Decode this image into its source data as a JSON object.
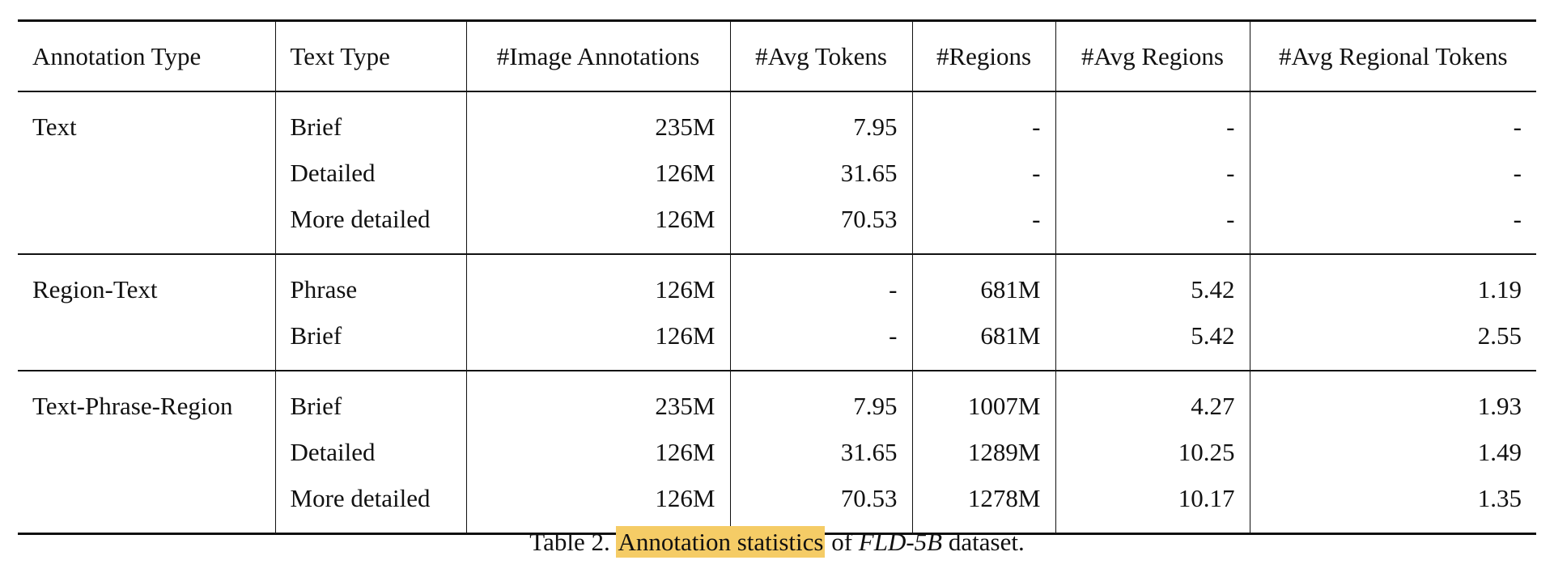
{
  "table": {
    "headers": [
      "Annotation Type",
      "Text Type",
      "#Image Annotations",
      "#Avg Tokens",
      "#Regions",
      "#Avg Regions",
      "#Avg Regional Tokens"
    ],
    "groups": [
      {
        "annotation_type": "Text",
        "rows": [
          {
            "text_type": "Brief",
            "image_annotations": "235M",
            "avg_tokens": "7.95",
            "regions": "-",
            "avg_regions": "-",
            "avg_regional_tokens": "-"
          },
          {
            "text_type": "Detailed",
            "image_annotations": "126M",
            "avg_tokens": "31.65",
            "regions": "-",
            "avg_regions": "-",
            "avg_regional_tokens": "-"
          },
          {
            "text_type": "More detailed",
            "image_annotations": "126M",
            "avg_tokens": "70.53",
            "regions": "-",
            "avg_regions": "-",
            "avg_regional_tokens": "-"
          }
        ]
      },
      {
        "annotation_type": "Region-Text",
        "rows": [
          {
            "text_type": "Phrase",
            "image_annotations": "126M",
            "avg_tokens": "-",
            "regions": "681M",
            "avg_regions": "5.42",
            "avg_regional_tokens": "1.19"
          },
          {
            "text_type": "Brief",
            "image_annotations": "126M",
            "avg_tokens": "-",
            "regions": "681M",
            "avg_regions": "5.42",
            "avg_regional_tokens": "2.55"
          }
        ]
      },
      {
        "annotation_type": "Text-Phrase-Region",
        "rows": [
          {
            "text_type": "Brief",
            "image_annotations": "235M",
            "avg_tokens": "7.95",
            "regions": "1007M",
            "avg_regions": "4.27",
            "avg_regional_tokens": "1.93"
          },
          {
            "text_type": "Detailed",
            "image_annotations": "126M",
            "avg_tokens": "31.65",
            "regions": "1289M",
            "avg_regions": "10.25",
            "avg_regional_tokens": "1.49"
          },
          {
            "text_type": "More detailed",
            "image_annotations": "126M",
            "avg_tokens": "70.53",
            "regions": "1278M",
            "avg_regions": "10.17",
            "avg_regional_tokens": "1.35"
          }
        ]
      }
    ]
  },
  "caption": {
    "label": "Table 2.",
    "highlight": "Annotation statistics",
    "middle": "of",
    "dataset": "FLD-5B",
    "end": "dataset.",
    "highlight_color": "#f5cc66"
  }
}
